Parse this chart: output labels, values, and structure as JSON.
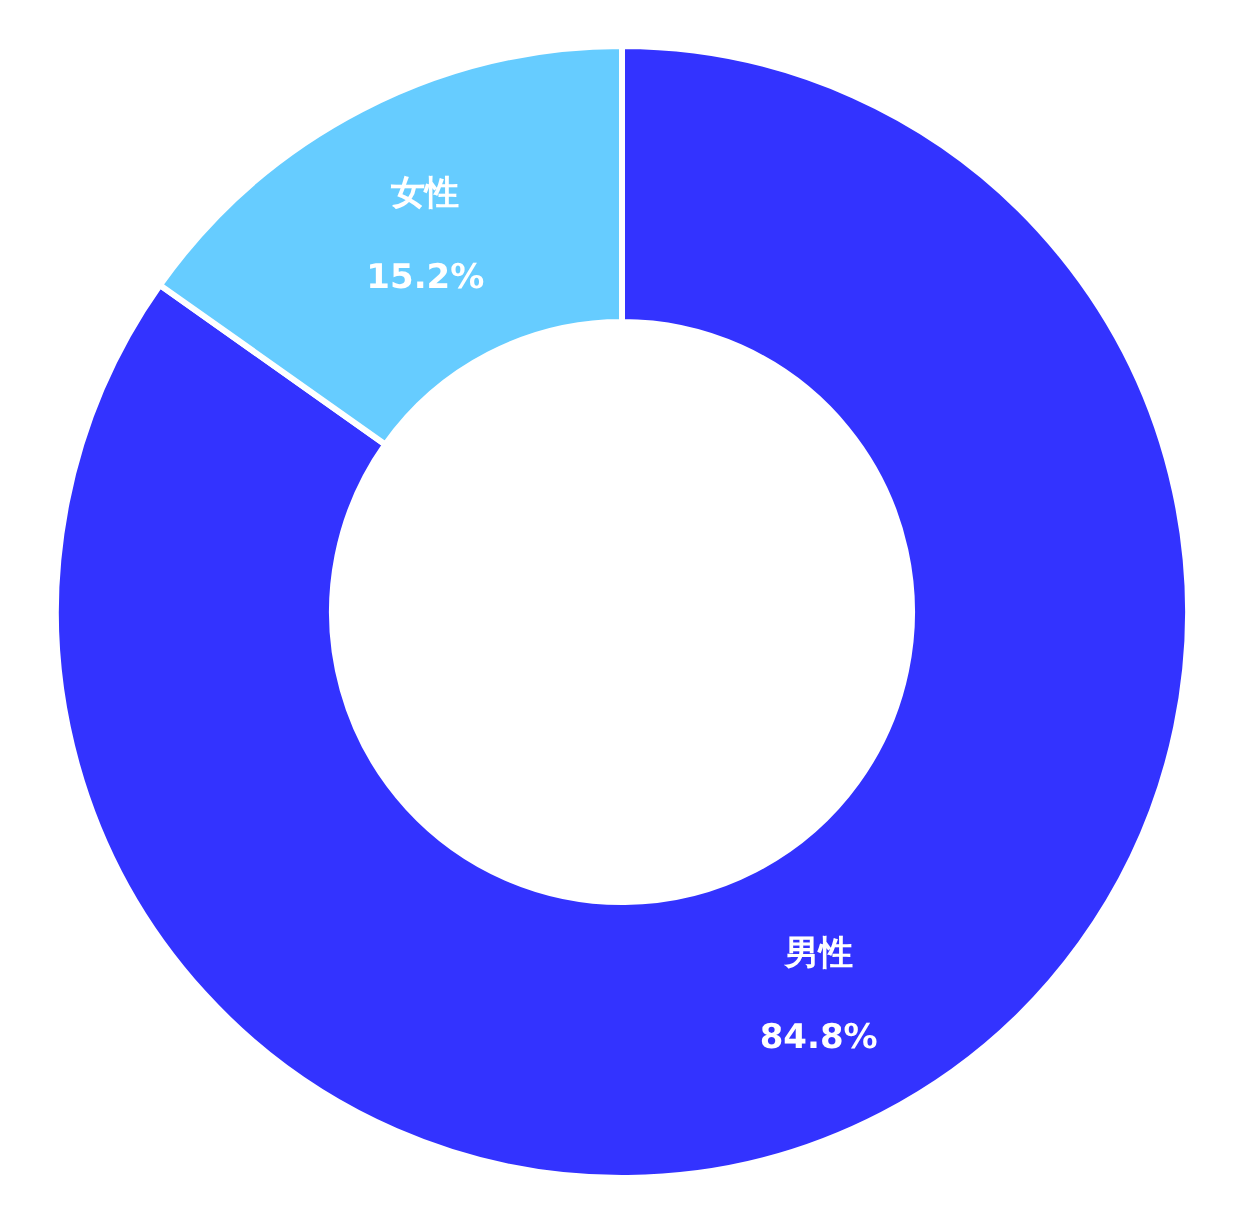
{
  "chart_data": {
    "type": "donut",
    "categories": [
      "男性",
      "女性"
    ],
    "values": [
      84.8,
      15.2
    ],
    "colors": [
      "#3333ff",
      "#66ccff"
    ],
    "value_labels": [
      "84.8%",
      "15.2%"
    ]
  }
}
